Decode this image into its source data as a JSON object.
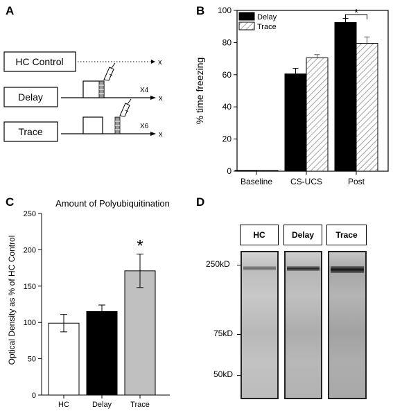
{
  "panels": {
    "a": "A",
    "b": "B",
    "c": "C",
    "d": "D"
  },
  "protocol": {
    "rows": [
      {
        "label": "HC Control",
        "repeat": "",
        "end": "x"
      },
      {
        "label": "Delay",
        "repeat": "X4",
        "end": "x"
      },
      {
        "label": "Trace",
        "repeat": "X6",
        "end": "x"
      }
    ]
  },
  "chart_data": [
    {
      "type": "bar",
      "title": "",
      "categories": [
        "Baseline",
        "CS-UCS",
        "Post"
      ],
      "series": [
        {
          "name": "Delay",
          "values": [
            0.5,
            60.5,
            92.5
          ],
          "errors": [
            0.2,
            3.5,
            2.5
          ],
          "color": "#000000"
        },
        {
          "name": "Trace",
          "values": [
            0.5,
            70.5,
            79.5
          ],
          "errors": [
            0.2,
            2.0,
            4.0
          ],
          "color": "#ffffff",
          "pattern": "hatched"
        }
      ],
      "ylabel": "% time freezing",
      "xlabel": "",
      "ylim": [
        0,
        100
      ],
      "yticks": [
        "0",
        "20",
        "40",
        "60",
        "80",
        "100"
      ],
      "legend": "top-left",
      "annotation": "*"
    },
    {
      "type": "bar",
      "title": "Amount of Polyubiquitination",
      "categories": [
        "HC",
        "Delay",
        "Trace"
      ],
      "values": [
        99,
        115,
        171
      ],
      "errors": [
        12,
        9,
        23
      ],
      "colors": [
        "#ffffff",
        "#000000",
        "#c0c0c0"
      ],
      "ylabel": "Optical Density as % of HC Control",
      "xlabel": "",
      "ylim": [
        0,
        250
      ],
      "yticks": [
        "0",
        "50",
        "100",
        "150",
        "200",
        "250"
      ],
      "annotation": "*"
    }
  ],
  "blot": {
    "lanes": [
      "HC",
      "Delay",
      "Trace"
    ],
    "markers": [
      "250kD",
      "75kD",
      "50kD"
    ]
  }
}
